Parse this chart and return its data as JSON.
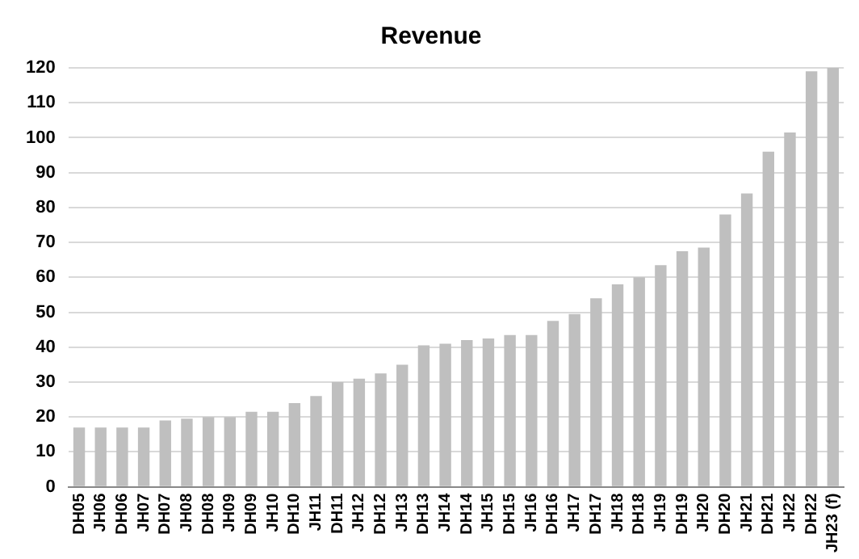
{
  "chart_data": {
    "type": "bar",
    "title": "Revenue",
    "categories": [
      "DH05",
      "JH06",
      "DH06",
      "JH07",
      "DH07",
      "JH08",
      "DH08",
      "JH09",
      "DH09",
      "JH10",
      "DH10",
      "JH11",
      "DH11",
      "JH12",
      "DH12",
      "JH13",
      "DH13",
      "JH14",
      "DH14",
      "JH15",
      "DH15",
      "JH16",
      "DH16",
      "JH17",
      "DH17",
      "JH18",
      "DH18",
      "JH19",
      "DH19",
      "JH20",
      "DH20",
      "JH21",
      "DH21",
      "JH22",
      "DH22",
      "JH23 (f)"
    ],
    "values": [
      17,
      17,
      17,
      17,
      19,
      19.5,
      20,
      20,
      21.5,
      21.5,
      24,
      26,
      30,
      31,
      32.5,
      35,
      40.5,
      41,
      42,
      42.5,
      43.5,
      43.5,
      47.5,
      49.5,
      54,
      58,
      60,
      63.5,
      67.5,
      68.5,
      78,
      84,
      96,
      101.5,
      119,
      120
    ],
    "color": "#bfbfbf",
    "ylim": [
      0,
      120
    ],
    "yticks": [
      0,
      10,
      20,
      30,
      40,
      50,
      60,
      70,
      80,
      90,
      100,
      110,
      120
    ],
    "grid": "y",
    "legend": false
  }
}
